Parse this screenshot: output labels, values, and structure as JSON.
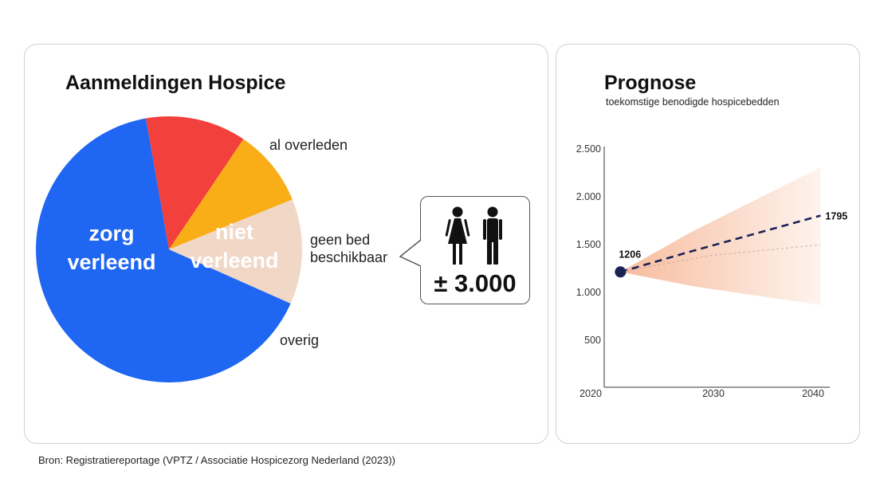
{
  "left_panel": {
    "title": "Aanmeldingen Hospice",
    "callout": {
      "value": "± 3.000",
      "icon": "woman-man-icon"
    }
  },
  "right_panel": {
    "title": "Prognose",
    "subtitle": "toekomstige benodigde hospicebedden"
  },
  "source": "Bron: Registratiereportage (VPTZ / Associatie Hospicezorg Nederland (2023))",
  "colors": {
    "zorg_verleend": "#1F66F2",
    "al_overleden": "#F2403C",
    "niet_verleend": "#F9AD16",
    "overig": "#F1D7C6",
    "projection_line": "#1B2356",
    "band": "#F6B08C"
  },
  "chart_data": [
    {
      "type": "pie",
      "title": "Aanmeldingen Hospice",
      "slices": [
        {
          "label_lines": [
            "zorg",
            "verleend"
          ],
          "share": 0.59,
          "color": "#1F66F2"
        },
        {
          "label_lines": [
            "al overleden"
          ],
          "share": 0.11,
          "color": "#F2403C"
        },
        {
          "label_lines": [
            "niet",
            "verleend"
          ],
          "share": 0.085,
          "color": "#F9AD16"
        },
        {
          "label_lines": [
            "overig"
          ],
          "share": 0.115,
          "color": "#F1D7C6"
        }
      ],
      "annotation_lines": [
        "geen bed",
        "beschikbaar"
      ],
      "annotation_value": "± 3.000"
    },
    {
      "type": "line",
      "title": "Prognose",
      "subtitle": "toekomstige benodigde hospicebedden",
      "x_ticks": [
        "2020",
        "2030",
        "2040"
      ],
      "y_ticks": [
        "500",
        "1.000",
        "1.500",
        "2.000",
        "2.500"
      ],
      "xlim": [
        2020,
        2041
      ],
      "ylim": [
        0,
        2600
      ],
      "start_point": {
        "x": 2021.5,
        "y": 1206,
        "label": "1206"
      },
      "end_label": "1795",
      "series": [
        {
          "style": "dashed",
          "x": [
            2021.5,
            2028,
            2040
          ],
          "y": [
            1206,
            1420,
            1795
          ]
        },
        {
          "style": "thin",
          "x": [
            2021.5,
            2030,
            2040
          ],
          "y": [
            1206,
            1380,
            1490
          ]
        }
      ],
      "band": {
        "x": [
          2021.5,
          2028,
          2040
        ],
        "upper": [
          1206,
          1620,
          2300
        ],
        "lower": [
          1206,
          1060,
          860
        ]
      }
    }
  ]
}
